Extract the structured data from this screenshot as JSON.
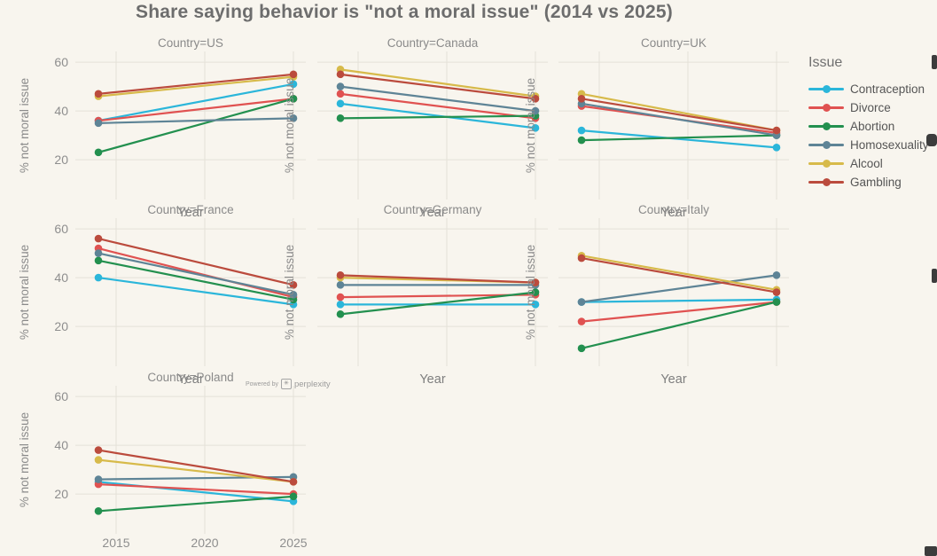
{
  "title": "Share saying behavior is \"not a moral issue\" (2014 vs 2025)",
  "legend": {
    "title": "Issue",
    "items": [
      {
        "label": "Contraception",
        "color": "#2bb6da"
      },
      {
        "label": "Divorce",
        "color": "#e05251"
      },
      {
        "label": "Abortion",
        "color": "#23904f"
      },
      {
        "label": "Homosexuality",
        "color": "#5e8496"
      },
      {
        "label": "Alcool",
        "color": "#d7ba4a"
      },
      {
        "label": "Gambling",
        "color": "#bb4b3d"
      }
    ]
  },
  "watermark": {
    "prefix": "Powered by",
    "logo": "✳",
    "brand": "perplexity"
  },
  "chart_data": {
    "type": "line",
    "layout": "facet-grid-3col",
    "x": [
      2014,
      2025
    ],
    "xlabel": "Year",
    "ylabel": "% not moral issue",
    "ylim": [
      3,
      64
    ],
    "y_ticks": [
      60,
      40,
      20
    ],
    "x_ticks": [
      2015,
      2020,
      2025
    ],
    "grid": true,
    "legend_position": "right",
    "panels": [
      {
        "country": "US",
        "title": "Country=US",
        "series": [
          {
            "name": "Contraception",
            "values": [
              36,
              51
            ]
          },
          {
            "name": "Divorce",
            "values": [
              36,
              45
            ]
          },
          {
            "name": "Abortion",
            "values": [
              23,
              45
            ]
          },
          {
            "name": "Homosexuality",
            "values": [
              35,
              37
            ]
          },
          {
            "name": "Alcool",
            "values": [
              46,
              54
            ]
          },
          {
            "name": "Gambling",
            "values": [
              47,
              55
            ]
          }
        ]
      },
      {
        "country": "Canada",
        "title": "Country=Canada",
        "series": [
          {
            "name": "Contraception",
            "values": [
              43,
              33
            ]
          },
          {
            "name": "Divorce",
            "values": [
              47,
              37
            ]
          },
          {
            "name": "Abortion",
            "values": [
              37,
              38
            ]
          },
          {
            "name": "Homosexuality",
            "values": [
              50,
              40
            ]
          },
          {
            "name": "Alcool",
            "values": [
              57,
              46
            ]
          },
          {
            "name": "Gambling",
            "values": [
              55,
              45
            ]
          }
        ]
      },
      {
        "country": "UK",
        "title": "Country=UK",
        "series": [
          {
            "name": "Contraception",
            "values": [
              32,
              25
            ]
          },
          {
            "name": "Divorce",
            "values": [
              42,
              31
            ]
          },
          {
            "name": "Abortion",
            "values": [
              28,
              30
            ]
          },
          {
            "name": "Homosexuality",
            "values": [
              43,
              30
            ]
          },
          {
            "name": "Alcool",
            "values": [
              47,
              32
            ]
          },
          {
            "name": "Gambling",
            "values": [
              45,
              32
            ]
          }
        ]
      },
      {
        "country": "France",
        "title": "Country=France",
        "series": [
          {
            "name": "Contraception",
            "values": [
              40,
              29
            ]
          },
          {
            "name": "Divorce",
            "values": [
              52,
              32
            ]
          },
          {
            "name": "Abortion",
            "values": [
              47,
              31
            ]
          },
          {
            "name": "Homosexuality",
            "values": [
              50,
              33
            ]
          },
          {
            "name": "Gambling",
            "values": [
              56,
              37
            ]
          }
        ]
      },
      {
        "country": "Germany",
        "title": "Country=Germany",
        "series": [
          {
            "name": "Contraception",
            "values": [
              29,
              29
            ]
          },
          {
            "name": "Divorce",
            "values": [
              32,
              33
            ]
          },
          {
            "name": "Abortion",
            "values": [
              25,
              34
            ]
          },
          {
            "name": "Homosexuality",
            "values": [
              37,
              37
            ]
          },
          {
            "name": "Alcool",
            "values": [
              40,
              38
            ]
          },
          {
            "name": "Gambling",
            "values": [
              41,
              38
            ]
          }
        ]
      },
      {
        "country": "Italy",
        "title": "Country=Italy",
        "series": [
          {
            "name": "Contraception",
            "values": [
              30,
              31
            ]
          },
          {
            "name": "Divorce",
            "values": [
              22,
              30
            ]
          },
          {
            "name": "Abortion",
            "values": [
              11,
              30
            ]
          },
          {
            "name": "Homosexuality",
            "values": [
              30,
              41
            ]
          },
          {
            "name": "Alcool",
            "values": [
              49,
              35
            ]
          },
          {
            "name": "Gambling",
            "values": [
              48,
              34
            ]
          }
        ]
      },
      {
        "country": "Poland",
        "title": "Country=Poland",
        "series": [
          {
            "name": "Contraception",
            "values": [
              25,
              17
            ]
          },
          {
            "name": "Divorce",
            "values": [
              24,
              20
            ]
          },
          {
            "name": "Abortion",
            "values": [
              13,
              19
            ]
          },
          {
            "name": "Homosexuality",
            "values": [
              26,
              27
            ]
          },
          {
            "name": "Alcool",
            "values": [
              34,
              25
            ]
          },
          {
            "name": "Gambling",
            "values": [
              38,
              25
            ]
          }
        ]
      }
    ]
  }
}
